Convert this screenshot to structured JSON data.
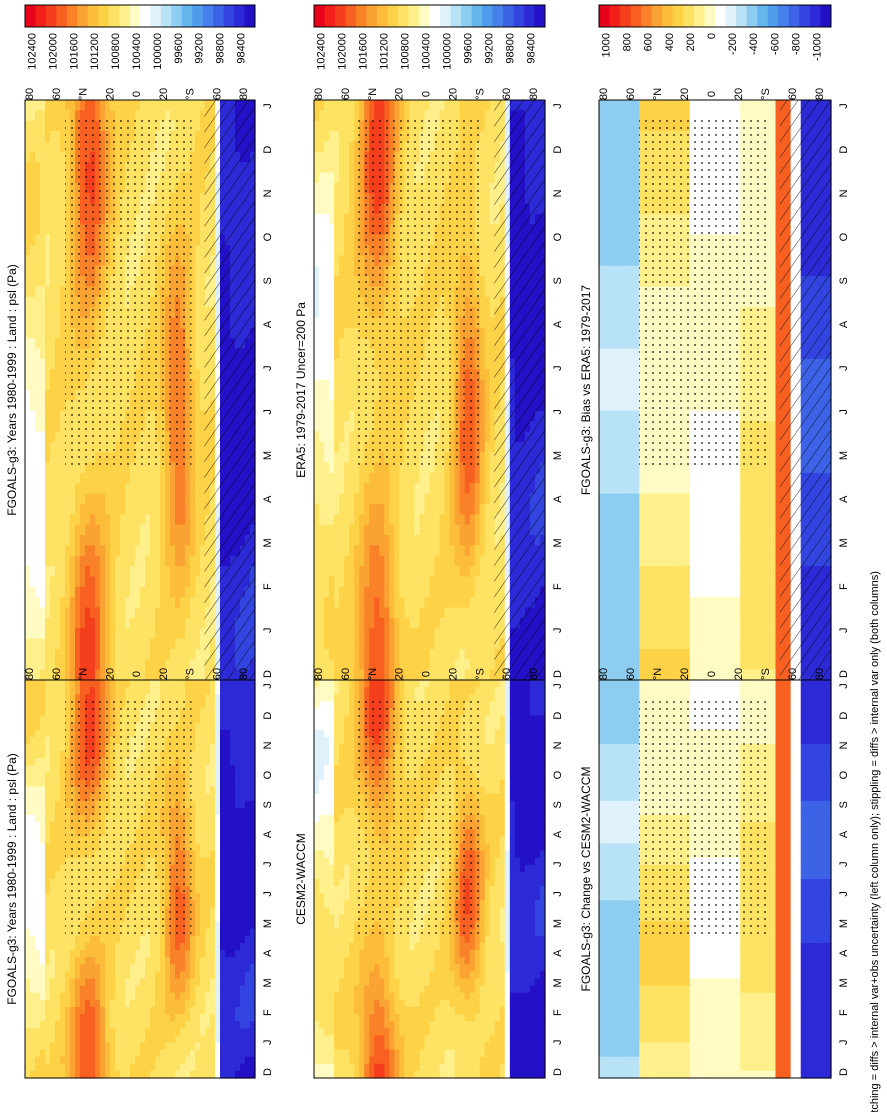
{
  "figure": {
    "footnote": "hatching = diffs > internal var+obs uncertainty (left column only); stippling = diffs > internal var only (both columns)"
  },
  "colormaps": {
    "abs": [
      "#e8001a",
      "#f21f1b",
      "#f53e1c",
      "#f76020",
      "#f98228",
      "#fba332",
      "#fcbd3a",
      "#fdd247",
      "#fee263",
      "#fff08c",
      "#fffbc2",
      "#ffffff",
      "#dff2fb",
      "#b8e2f6",
      "#8ecdf2",
      "#66b6ee",
      "#4f9cec",
      "#4680ea",
      "#3c63e6",
      "#3345e0",
      "#2c2ad6",
      "#2310c7"
    ],
    "diff": [
      "#e8001a",
      "#f21f1b",
      "#f53e1c",
      "#f76020",
      "#f98228",
      "#fba332",
      "#fcbd3a",
      "#fdd247",
      "#fee263",
      "#fff08c",
      "#fffbc2",
      "#ffffff",
      "#dff2fb",
      "#b8e2f6",
      "#8ecdf2",
      "#66b6ee",
      "#4f9cec",
      "#4680ea",
      "#3c63e6",
      "#3345e0",
      "#2c2ad6",
      "#2310c7"
    ]
  },
  "chart_data": [
    {
      "id": "p1",
      "type": "heatmap",
      "variant": "abs",
      "col": 0,
      "row": 0,
      "title": "FGOALS-g3: Years 1980-1999 : Land : psl (Pa)",
      "x_ticks": [
        "D",
        "J",
        "F",
        "M",
        "A",
        "M",
        "J",
        "J",
        "A",
        "S",
        "O",
        "N",
        "D",
        "J"
      ],
      "y_ticks": [
        "80",
        "60",
        "°N",
        "20",
        "0",
        "20",
        "°S",
        "60",
        "80"
      ],
      "colorbar_labels": [
        "102400",
        "102000",
        "101600",
        "101200",
        "100800",
        "100400",
        "100000",
        "99600",
        "99200",
        "98800",
        "98400"
      ],
      "lat_range": [
        -90,
        90
      ],
      "months": 14,
      "units": "Pa",
      "hatching": true,
      "stippling": true
    },
    {
      "id": "p2",
      "type": "heatmap",
      "variant": "abs",
      "col": 1,
      "row": 0,
      "title": "FGOALS-g3: Years 1980-1999 : Land : psl (Pa)",
      "x_ticks": [
        "D",
        "J",
        "F",
        "M",
        "A",
        "M",
        "J",
        "J",
        "A",
        "S",
        "O",
        "N",
        "D",
        "J"
      ],
      "y_ticks": [
        "80",
        "60",
        "°N",
        "20",
        "0",
        "20",
        "°S",
        "60",
        "80"
      ],
      "colorbar_labels": [
        "102400",
        "102000",
        "101600",
        "101200",
        "100800",
        "100400",
        "100000",
        "99600",
        "99200",
        "98800",
        "98400"
      ],
      "lat_range": [
        -90,
        90
      ],
      "months": 14,
      "units": "Pa",
      "hatching": false,
      "stippling": true
    },
    {
      "id": "p3",
      "type": "heatmap",
      "variant": "abs",
      "col": 0,
      "row": 1,
      "title": "ERA5: 1979-2017 Uncer=200 Pa",
      "x_ticks": [
        "D",
        "J",
        "F",
        "M",
        "A",
        "M",
        "J",
        "J",
        "A",
        "S",
        "O",
        "N",
        "D",
        "J"
      ],
      "y_ticks": [
        "80",
        "60",
        "°N",
        "20",
        "0",
        "20",
        "°S",
        "60",
        "80"
      ],
      "colorbar_labels": [
        "102400",
        "102000",
        "101600",
        "101200",
        "100800",
        "100400",
        "100000",
        "99600",
        "99200",
        "98800",
        "98400"
      ],
      "lat_range": [
        -90,
        90
      ],
      "months": 14,
      "units": "Pa",
      "hatching": true,
      "stippling": true
    },
    {
      "id": "p4",
      "type": "heatmap",
      "variant": "abs",
      "col": 1,
      "row": 1,
      "title": "CESM2-WACCM",
      "x_ticks": [
        "D",
        "J",
        "F",
        "M",
        "A",
        "M",
        "J",
        "J",
        "A",
        "S",
        "O",
        "N",
        "D",
        "J"
      ],
      "y_ticks": [
        "80",
        "60",
        "°N",
        "20",
        "0",
        "20",
        "°S",
        "60",
        "80"
      ],
      "colorbar_labels": [
        "102400",
        "102000",
        "101600",
        "101200",
        "100800",
        "100400",
        "100000",
        "99600",
        "99200",
        "98800",
        "98400"
      ],
      "lat_range": [
        -90,
        90
      ],
      "months": 14,
      "units": "Pa",
      "hatching": false,
      "stippling": true
    },
    {
      "id": "p5",
      "type": "heatmap",
      "variant": "diff",
      "col": 0,
      "row": 2,
      "title": "FGOALS-g3: Bias vs ERA5: 1979-2017",
      "x_ticks": [
        "D",
        "J",
        "F",
        "M",
        "A",
        "M",
        "J",
        "J",
        "A",
        "S",
        "O",
        "N",
        "D",
        "J"
      ],
      "y_ticks": [
        "80",
        "60",
        "°N",
        "20",
        "0",
        "20",
        "°S",
        "60",
        "80"
      ],
      "colorbar_labels": [
        "1000",
        "800",
        "600",
        "400",
        "200",
        "0",
        "-200",
        "-400",
        "-600",
        "-800",
        "-1000"
      ],
      "lat_range": [
        -90,
        90
      ],
      "months": 14,
      "units": "Pa",
      "hatching": true,
      "stippling": true
    },
    {
      "id": "p6",
      "type": "heatmap",
      "variant": "diff",
      "col": 1,
      "row": 2,
      "title": "FGOALS-g3: Change vs CESM2-WACCM",
      "x_ticks": [
        "D",
        "J",
        "F",
        "M",
        "A",
        "M",
        "J",
        "J",
        "A",
        "S",
        "O",
        "N",
        "D",
        "J"
      ],
      "y_ticks": [
        "80",
        "60",
        "°N",
        "20",
        "0",
        "20",
        "°S",
        "60",
        "80"
      ],
      "colorbar_labels": [
        "1000",
        "800",
        "600",
        "400",
        "200",
        "0",
        "-200",
        "-400",
        "-600",
        "-800",
        "-1000"
      ],
      "lat_range": [
        -90,
        90
      ],
      "months": 14,
      "units": "Pa",
      "hatching": false,
      "stippling": true
    }
  ]
}
